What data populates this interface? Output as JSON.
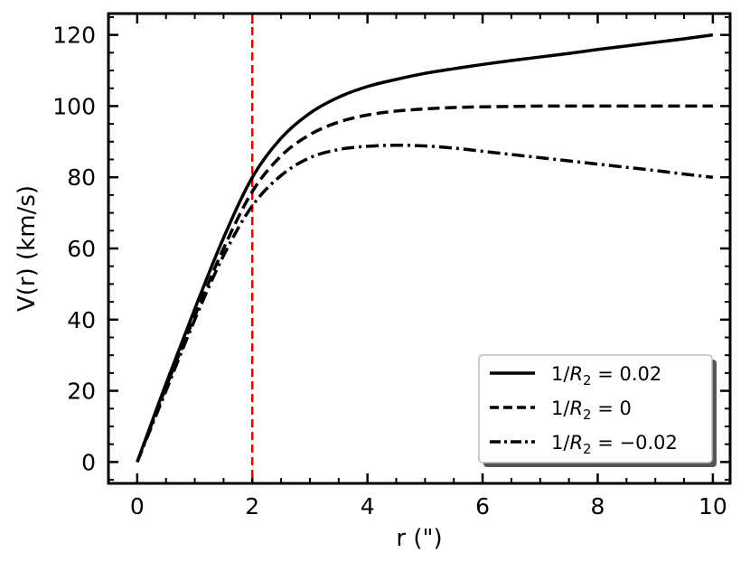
{
  "chart_data": {
    "type": "line",
    "title": "",
    "xlabel": "r (\")",
    "ylabel": "V(r) (km/s)",
    "xlim": [
      -0.5,
      10.3
    ],
    "ylim": [
      -6,
      126
    ],
    "xticks": [
      0,
      2,
      4,
      6,
      8,
      10
    ],
    "yticks": [
      0,
      20,
      40,
      60,
      80,
      100,
      120
    ],
    "xtick_labels": [
      "0",
      "2",
      "4",
      "6",
      "8",
      "10"
    ],
    "ytick_labels": [
      "0",
      "20",
      "40",
      "60",
      "80",
      "100",
      "120"
    ],
    "grid": false,
    "legend_position": "bottom-right",
    "reference_line": {
      "x": 2,
      "color": "#e00000",
      "style": "dashed"
    },
    "series": [
      {
        "name": "1/R₂ = 0.02",
        "legend_label": {
          "base": "1/",
          "var": "R",
          "sub": "2",
          "rest": " = 0.02"
        },
        "style": "solid",
        "x": [
          0,
          0.5,
          1,
          1.5,
          2,
          2.5,
          3,
          3.5,
          4,
          4.5,
          5,
          5.5,
          6,
          6.5,
          7,
          7.5,
          8,
          8.5,
          9,
          9.5,
          10
        ],
        "y": [
          0,
          22,
          43,
          63,
          80,
          91,
          98,
          102.5,
          105.5,
          107.5,
          109.2,
          110.5,
          111.7,
          112.8,
          113.8,
          114.8,
          115.9,
          116.9,
          117.9,
          118.9,
          120
        ]
      },
      {
        "name": "1/R₂ = 0",
        "legend_label": {
          "base": "1/",
          "var": "R",
          "sub": "2",
          "rest": " = 0"
        },
        "style": "dashed",
        "x": [
          0,
          0.5,
          1,
          1.5,
          2,
          2.5,
          3,
          3.5,
          4,
          4.5,
          5,
          5.5,
          6,
          6.5,
          7,
          7.5,
          8,
          8.5,
          9,
          9.5,
          10
        ],
        "y": [
          0,
          21,
          41,
          60,
          76,
          86,
          92,
          95.5,
          97.5,
          98.6,
          99.2,
          99.6,
          99.8,
          99.9,
          100,
          100,
          100,
          100,
          100,
          100,
          100
        ]
      },
      {
        "name": "1/R₂ = −0.02",
        "legend_label": {
          "base": "1/",
          "var": "R",
          "sub": "2",
          "rest": " = −0.02"
        },
        "style": "dashdot",
        "x": [
          0,
          0.5,
          1,
          1.5,
          2,
          2.5,
          3,
          3.5,
          4,
          4.5,
          5,
          5.5,
          6,
          6.5,
          7,
          7.5,
          8,
          8.5,
          9,
          9.5,
          10
        ],
        "y": [
          0,
          20,
          40,
          58,
          72,
          80.5,
          85.5,
          87.8,
          88.7,
          89,
          88.8,
          88.2,
          87.3,
          86.4,
          85.5,
          84.6,
          83.7,
          82.8,
          81.9,
          80.9,
          80
        ]
      }
    ]
  }
}
